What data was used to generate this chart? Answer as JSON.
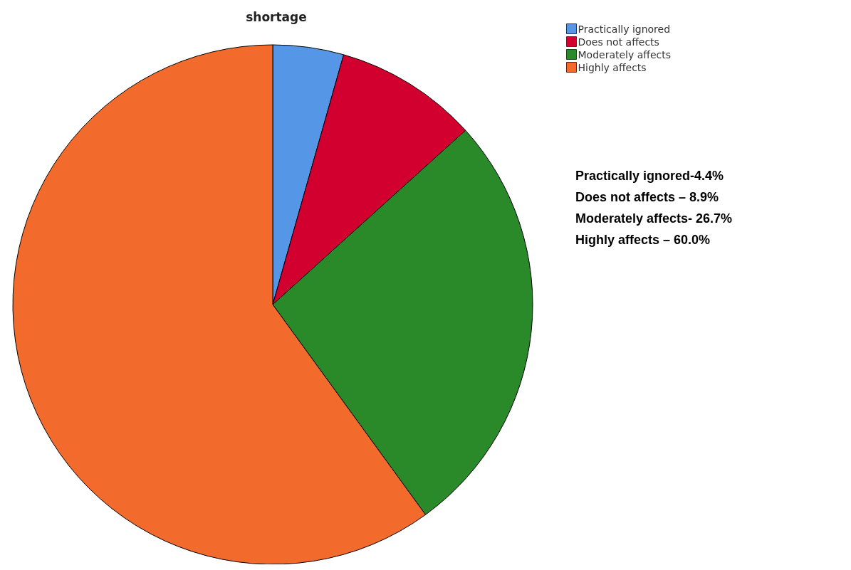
{
  "chart_data": {
    "type": "pie",
    "title": "shortage",
    "categories": [
      "Practically ignored",
      "Does not affects",
      "Moderately affects",
      "Highly affects"
    ],
    "values": [
      4.4,
      8.9,
      26.7,
      60.0
    ],
    "colors": [
      "#5596e6",
      "#d1002f",
      "#2a8a2a",
      "#f26a2c"
    ],
    "legend": "top right",
    "annotations": [
      "Practically ignored-4.4%",
      "Does not affects – 8.9%",
      "Moderately affects- 26.7%",
      "Highly affects – 60.0%"
    ]
  }
}
